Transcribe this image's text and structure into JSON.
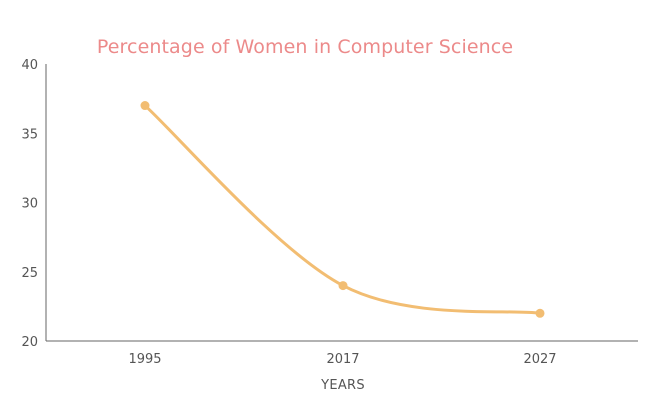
{
  "chart_data": {
    "type": "line",
    "title": "Percentage of Women in Computer Science",
    "xlabel": "YEARS",
    "ylabel": "",
    "categories": [
      "1995",
      "2017",
      "2027"
    ],
    "series": [
      {
        "values": [
          37,
          24,
          22
        ]
      }
    ],
    "ylim": [
      20,
      40
    ],
    "yticks": [
      20,
      25,
      30,
      35,
      40
    ],
    "grid": false,
    "legend": "none",
    "line_style": "smooth",
    "colors": {
      "line": "#f2bd72",
      "title": "#ec8a8a",
      "axis": "#666666"
    }
  }
}
